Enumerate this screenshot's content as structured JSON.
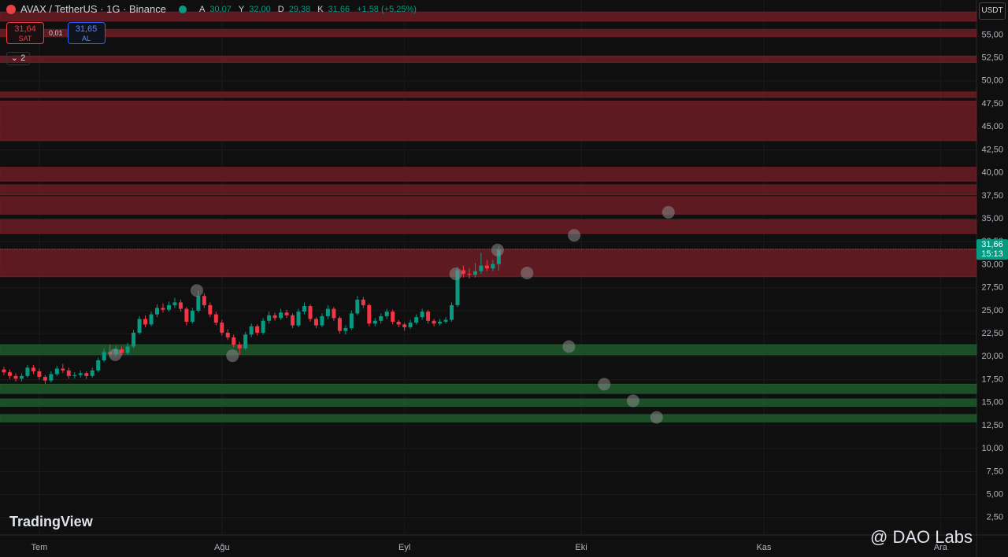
{
  "chart_data": {
    "type": "candlestick",
    "title": "AVAX / TetherUS · 1G · Binance",
    "up_color": "#089981",
    "down_color": "#f23645",
    "candles": [
      [
        18.6,
        18.9,
        18.0,
        18.3
      ],
      [
        18.3,
        18.6,
        17.6,
        17.9
      ],
      [
        17.9,
        18.2,
        17.3,
        17.6
      ],
      [
        17.6,
        18.2,
        17.3,
        17.9
      ],
      [
        17.9,
        19.1,
        17.7,
        18.8
      ],
      [
        18.8,
        19.1,
        18.1,
        18.4
      ],
      [
        18.4,
        18.7,
        17.5,
        17.8
      ],
      [
        17.8,
        18.0,
        17.0,
        17.4
      ],
      [
        17.4,
        18.4,
        17.2,
        18.1
      ],
      [
        18.1,
        19.0,
        17.9,
        18.7
      ],
      [
        18.7,
        19.2,
        18.2,
        18.5
      ],
      [
        18.5,
        18.8,
        17.6,
        17.9
      ],
      [
        17.9,
        18.3,
        17.6,
        18.0
      ],
      [
        18.0,
        18.5,
        17.7,
        18.2
      ],
      [
        18.2,
        18.4,
        17.6,
        17.9
      ],
      [
        17.9,
        18.8,
        17.7,
        18.5
      ],
      [
        18.5,
        19.9,
        18.3,
        19.6
      ],
      [
        19.6,
        20.9,
        19.4,
        20.5
      ],
      [
        20.5,
        21.3,
        20.0,
        20.3
      ],
      [
        20.3,
        21.2,
        20.0,
        20.8
      ],
      [
        20.8,
        21.1,
        20.1,
        20.4
      ],
      [
        20.4,
        21.5,
        20.2,
        21.1
      ],
      [
        21.1,
        22.9,
        20.9,
        22.6
      ],
      [
        22.6,
        24.4,
        22.4,
        24.1
      ],
      [
        24.1,
        24.5,
        23.2,
        23.5
      ],
      [
        23.5,
        24.9,
        23.3,
        24.6
      ],
      [
        24.6,
        25.7,
        24.3,
        25.3
      ],
      [
        25.3,
        25.8,
        24.8,
        25.1
      ],
      [
        25.1,
        26.0,
        24.9,
        25.6
      ],
      [
        25.6,
        26.4,
        25.3,
        25.9
      ],
      [
        25.9,
        26.2,
        24.9,
        25.2
      ],
      [
        25.2,
        25.4,
        23.4,
        23.8
      ],
      [
        23.8,
        25.3,
        23.6,
        25.0
      ],
      [
        25.0,
        27.2,
        24.8,
        26.6
      ],
      [
        26.6,
        26.9,
        25.3,
        25.6
      ],
      [
        25.6,
        25.9,
        24.3,
        24.6
      ],
      [
        24.6,
        24.9,
        23.4,
        23.7
      ],
      [
        23.7,
        24.0,
        22.3,
        22.6
      ],
      [
        22.6,
        23.0,
        21.8,
        22.1
      ],
      [
        22.1,
        22.4,
        21.0,
        21.3
      ],
      [
        21.3,
        21.6,
        20.2,
        20.9
      ],
      [
        20.9,
        22.7,
        20.7,
        22.4
      ],
      [
        22.4,
        23.6,
        22.1,
        23.3
      ],
      [
        23.3,
        23.5,
        22.3,
        22.6
      ],
      [
        22.6,
        24.2,
        22.4,
        23.9
      ],
      [
        23.9,
        24.9,
        23.6,
        24.5
      ],
      [
        24.5,
        24.8,
        23.9,
        24.2
      ],
      [
        24.2,
        25.2,
        24.0,
        24.8
      ],
      [
        24.8,
        25.1,
        24.2,
        24.5
      ],
      [
        24.5,
        24.7,
        23.1,
        23.4
      ],
      [
        23.4,
        25.2,
        23.2,
        24.9
      ],
      [
        24.9,
        25.9,
        24.6,
        25.5
      ],
      [
        25.5,
        25.7,
        23.8,
        24.1
      ],
      [
        24.1,
        24.3,
        23.1,
        23.4
      ],
      [
        23.4,
        24.7,
        23.2,
        24.4
      ],
      [
        24.4,
        25.6,
        24.1,
        25.2
      ],
      [
        25.2,
        25.4,
        23.9,
        24.2
      ],
      [
        24.2,
        24.4,
        22.5,
        22.8
      ],
      [
        22.8,
        23.4,
        22.4,
        23.1
      ],
      [
        23.1,
        25.0,
        22.9,
        24.7
      ],
      [
        24.7,
        26.6,
        24.5,
        26.2
      ],
      [
        26.2,
        26.5,
        25.3,
        25.6
      ],
      [
        25.6,
        25.8,
        23.3,
        23.6
      ],
      [
        23.6,
        24.2,
        23.3,
        23.9
      ],
      [
        23.9,
        24.7,
        23.6,
        24.4
      ],
      [
        24.4,
        25.2,
        24.1,
        24.9
      ],
      [
        24.9,
        25.1,
        23.5,
        23.8
      ],
      [
        23.8,
        24.0,
        23.2,
        23.5
      ],
      [
        23.5,
        23.7,
        22.8,
        23.2
      ],
      [
        23.2,
        24.0,
        23.0,
        23.7
      ],
      [
        23.7,
        24.6,
        23.5,
        24.3
      ],
      [
        24.3,
        25.2,
        24.0,
        24.9
      ],
      [
        24.9,
        25.1,
        23.6,
        23.9
      ],
      [
        23.9,
        24.1,
        23.3,
        23.6
      ],
      [
        23.6,
        24.1,
        23.4,
        23.8
      ],
      [
        23.8,
        24.3,
        23.6,
        24.0
      ],
      [
        24.0,
        25.9,
        23.8,
        25.6
      ],
      [
        25.6,
        29.8,
        25.4,
        29.4
      ],
      [
        29.4,
        29.9,
        28.6,
        29.0
      ],
      [
        29.0,
        29.6,
        28.5,
        28.9
      ],
      [
        28.9,
        30.2,
        28.6,
        29.3
      ],
      [
        29.3,
        31.3,
        29.0,
        29.9
      ],
      [
        29.9,
        30.5,
        29.3,
        29.6
      ],
      [
        29.6,
        30.5,
        29.3,
        30.07
      ],
      [
        30.07,
        32.0,
        29.38,
        31.66
      ]
    ],
    "zones": [
      {
        "from": 56.5,
        "to": 57.5,
        "color": "#6b1d24"
      },
      {
        "from": 54.8,
        "to": 55.6,
        "color": "#6b1d24"
      },
      {
        "from": 52.0,
        "to": 52.7,
        "color": "#6b1d24"
      },
      {
        "from": 48.2,
        "to": 48.8,
        "color": "#6b1d24"
      },
      {
        "from": 43.5,
        "to": 47.8,
        "color": "#6b1d24"
      },
      {
        "from": 39.1,
        "to": 40.6,
        "color": "#6b1d24"
      },
      {
        "from": 37.6,
        "to": 38.7,
        "color": "#6b1d24"
      },
      {
        "from": 35.5,
        "to": 37.4,
        "color": "#6b1d24"
      },
      {
        "from": 33.4,
        "to": 34.9,
        "color": "#6b1d24"
      },
      {
        "from": 28.7,
        "to": 31.7,
        "color": "#6b1d24"
      },
      {
        "from": 20.2,
        "to": 21.3,
        "color": "#1e5a2c"
      },
      {
        "from": 16.0,
        "to": 17.0,
        "color": "#1e5a2c"
      },
      {
        "from": 14.6,
        "to": 15.4,
        "color": "#1e5a2c"
      },
      {
        "from": 12.9,
        "to": 13.7,
        "color": "#1e5a2c"
      }
    ],
    "markers": {
      "color": "#8a8a8a",
      "x": [
        18.9,
        32.75,
        38.8,
        76.7,
        83.8,
        88.8,
        96.8,
        112.8,
        95.9,
        101.9,
        106.8,
        110.8
      ],
      "values": [
        20.2,
        27.2,
        20.1,
        29.0,
        31.6,
        29.1,
        33.2,
        35.7,
        21.1,
        17.0,
        15.2,
        13.4
      ]
    },
    "xlim": [
      -0.67,
      165.1
    ],
    "xticks": [
      {
        "value": 6,
        "label": "Tem"
      },
      {
        "value": 37,
        "label": "Ağu"
      },
      {
        "value": 68,
        "label": "Eyl"
      },
      {
        "value": 98,
        "label": "Eki"
      },
      {
        "value": 129,
        "label": "Kas"
      },
      {
        "value": 159,
        "label": "Ara"
      }
    ],
    "ylim": [
      0.6,
      58.8
    ],
    "yticks": [
      {
        "value": 2.5,
        "label": "2,50"
      },
      {
        "value": 5,
        "label": "5,00"
      },
      {
        "value": 7.5,
        "label": "7,50"
      },
      {
        "value": 10,
        "label": "10,00"
      },
      {
        "value": 12.5,
        "label": "12,50"
      },
      {
        "value": 15,
        "label": "15,00"
      },
      {
        "value": 17.5,
        "label": "17,50"
      },
      {
        "value": 20,
        "label": "20,00"
      },
      {
        "value": 22.5,
        "label": "22,50"
      },
      {
        "value": 25,
        "label": "25,00"
      },
      {
        "value": 27.5,
        "label": "27,50"
      },
      {
        "value": 30,
        "label": "30,00"
      },
      {
        "value": 32.5,
        "label": "32,50"
      },
      {
        "value": 35,
        "label": "35,00"
      },
      {
        "value": 37.5,
        "label": "37,50"
      },
      {
        "value": 40,
        "label": "40,00"
      },
      {
        "value": 42.5,
        "label": "42,50"
      },
      {
        "value": 45,
        "label": "45,00"
      },
      {
        "value": 47.5,
        "label": "47,50"
      },
      {
        "value": 50,
        "label": "50,00"
      },
      {
        "value": 52.5,
        "label": "52,50"
      },
      {
        "value": 55,
        "label": "55,00"
      }
    ],
    "grid": true,
    "last_price": {
      "value": 31.66,
      "label": "31,66"
    },
    "countdown": "15:13",
    "currency": "USDT"
  },
  "ui": {
    "open_key": "A",
    "open": "30,07",
    "high_key": "Y",
    "high": "32,00",
    "low_key": "D",
    "low": "29,38",
    "close_key": "K",
    "close": "31,66",
    "change": "+1,58 (+5,25%)",
    "sell_price": "31,64",
    "sell": "SAT",
    "spread": "0,01",
    "buy_price": "31,65",
    "buy": "AL",
    "indicator_count": "2",
    "watermark": "TradingView",
    "credit": "@ DAO Labs"
  }
}
